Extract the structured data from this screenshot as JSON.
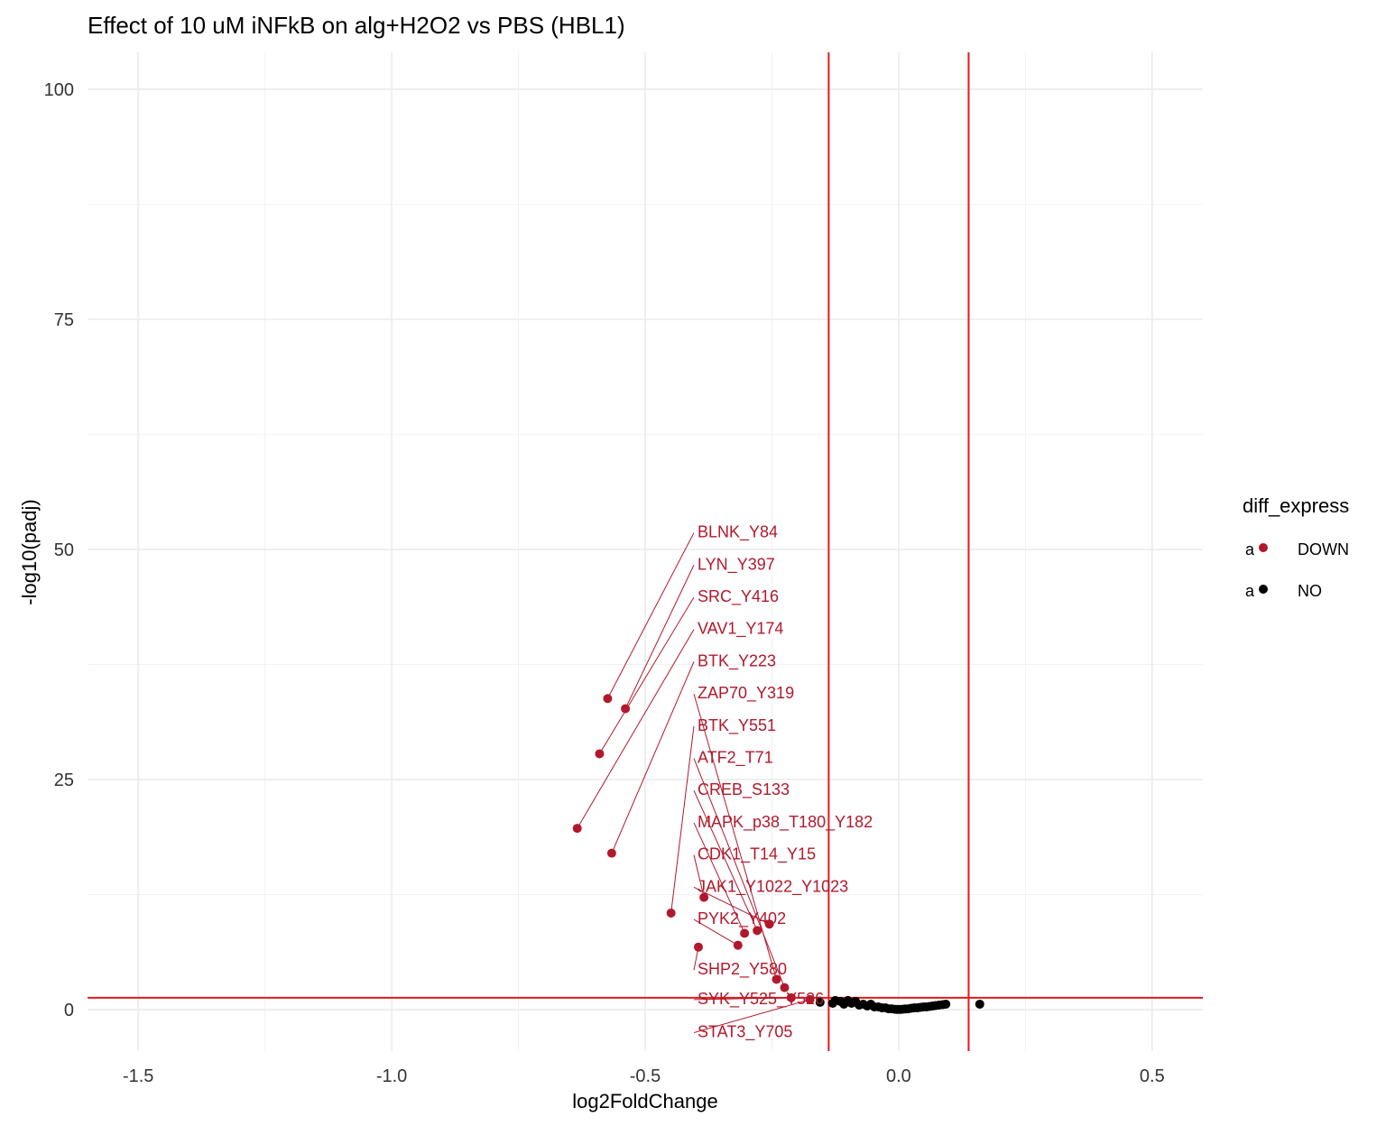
{
  "chart_data": {
    "type": "scatter",
    "title": "Effect of 10 uM iNFkB on alg+H2O2 vs PBS (HBL1)",
    "xlabel": "log2FoldChange",
    "ylabel": "-log10(padj)",
    "xlim": [
      -1.6,
      0.6
    ],
    "ylim": [
      -4.5,
      104
    ],
    "x_ticks": [
      -1.5,
      -1.0,
      -0.5,
      0.0,
      0.5
    ],
    "x_tick_labels": [
      "-1.5",
      "-1.0",
      "-0.5",
      "0.0",
      "0.5"
    ],
    "y_ticks": [
      0,
      25,
      50,
      75,
      100
    ],
    "y_tick_labels": [
      "0",
      "25",
      "50",
      "75",
      "100"
    ],
    "grid": true,
    "thresholds": {
      "vlines": [
        -0.138,
        0.138
      ],
      "hline": 1.3,
      "color": "#e41a1c"
    },
    "legend": {
      "title": "diff_express",
      "position": "right",
      "key_glyph": "a",
      "entries": [
        {
          "name": "DOWN",
          "color": "#b2182b"
        },
        {
          "name": "NO",
          "color": "#000000"
        }
      ]
    },
    "series": [
      {
        "name": "DOWN",
        "color": "#b2182b",
        "points": [
          {
            "x": -0.574,
            "y": 33.8,
            "label": "BLNK_Y84",
            "ly": 52.0
          },
          {
            "x": -0.539,
            "y": 32.7,
            "label": "LYN_Y397",
            "ly": 48.5
          },
          {
            "x": -0.59,
            "y": 27.8,
            "label": "SRC_Y416",
            "ly": 45.0
          },
          {
            "x": -0.634,
            "y": 19.7,
            "label": "VAV1_Y174",
            "ly": 41.5
          },
          {
            "x": -0.566,
            "y": 17.0,
            "label": "BTK_Y223",
            "ly": 38.0
          },
          {
            "x": -0.241,
            "y": 3.3,
            "label": "ZAP70_Y319",
            "ly": 34.5
          },
          {
            "x": -0.449,
            "y": 10.5,
            "label": "BTK_Y551",
            "ly": 31.0
          },
          {
            "x": -0.225,
            "y": 2.4,
            "label": "ATF2_T71",
            "ly": 27.5
          },
          {
            "x": -0.279,
            "y": 8.6,
            "label": "CREB_S133",
            "ly": 24.0
          },
          {
            "x": -0.304,
            "y": 8.3,
            "label": "MAPK_p38_T180_Y182",
            "ly": 20.5
          },
          {
            "x": -0.384,
            "y": 12.2,
            "label": "CDK1_T14_Y15",
            "ly": 17.0
          },
          {
            "x": -0.255,
            "y": 9.3,
            "label": "JAK1_Y1022_Y1023",
            "ly": 13.5
          },
          {
            "x": -0.317,
            "y": 7.0,
            "label": "PYK2_Y402",
            "ly": 10.0
          },
          {
            "x": -0.395,
            "y": 6.8,
            "label": "SHP2_Y580",
            "ly": 4.5
          },
          {
            "x": -0.212,
            "y": 1.3,
            "label": "SYK_Y525_Y526",
            "ly": 1.3
          },
          {
            "x": -0.175,
            "y": 1.1,
            "label": "STAT3_Y705",
            "ly": -2.3
          }
        ]
      },
      {
        "name": "NO",
        "color": "#000000",
        "points": [
          {
            "x": -0.155,
            "y": 0.8
          },
          {
            "x": -0.13,
            "y": 0.7
          },
          {
            "x": -0.125,
            "y": 1.0
          },
          {
            "x": -0.115,
            "y": 0.9
          },
          {
            "x": -0.108,
            "y": 0.6
          },
          {
            "x": -0.1,
            "y": 1.0
          },
          {
            "x": -0.093,
            "y": 0.7
          },
          {
            "x": -0.085,
            "y": 0.9
          },
          {
            "x": -0.078,
            "y": 0.5
          },
          {
            "x": -0.07,
            "y": 0.6
          },
          {
            "x": -0.062,
            "y": 0.4
          },
          {
            "x": -0.055,
            "y": 0.6
          },
          {
            "x": -0.048,
            "y": 0.3
          },
          {
            "x": -0.04,
            "y": 0.3
          },
          {
            "x": -0.033,
            "y": 0.2
          },
          {
            "x": -0.026,
            "y": 0.2
          },
          {
            "x": -0.02,
            "y": 0.1
          },
          {
            "x": -0.014,
            "y": 0.1
          },
          {
            "x": -0.008,
            "y": 0.05
          },
          {
            "x": -0.003,
            "y": 0.03
          },
          {
            "x": 0.003,
            "y": 0.03
          },
          {
            "x": 0.008,
            "y": 0.05
          },
          {
            "x": 0.013,
            "y": 0.08
          },
          {
            "x": 0.019,
            "y": 0.1
          },
          {
            "x": 0.025,
            "y": 0.15
          },
          {
            "x": 0.031,
            "y": 0.2
          },
          {
            "x": 0.037,
            "y": 0.2
          },
          {
            "x": 0.043,
            "y": 0.25
          },
          {
            "x": 0.049,
            "y": 0.3
          },
          {
            "x": 0.055,
            "y": 0.3
          },
          {
            "x": 0.061,
            "y": 0.35
          },
          {
            "x": 0.067,
            "y": 0.4
          },
          {
            "x": 0.073,
            "y": 0.45
          },
          {
            "x": 0.08,
            "y": 0.5
          },
          {
            "x": 0.087,
            "y": 0.55
          },
          {
            "x": 0.093,
            "y": 0.6
          },
          {
            "x": 0.16,
            "y": 0.6
          }
        ]
      }
    ]
  }
}
